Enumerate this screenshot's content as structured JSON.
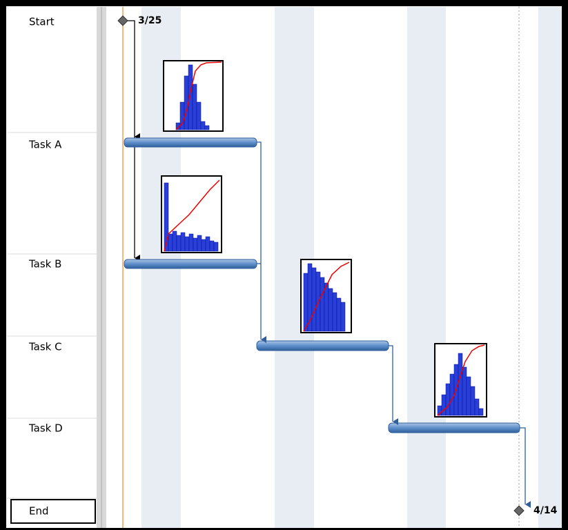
{
  "rows": [
    "Start",
    "Task A",
    "Task B",
    "Task C",
    "Task D",
    "End"
  ],
  "milestones": [
    "3/25",
    "4/14"
  ]
}
